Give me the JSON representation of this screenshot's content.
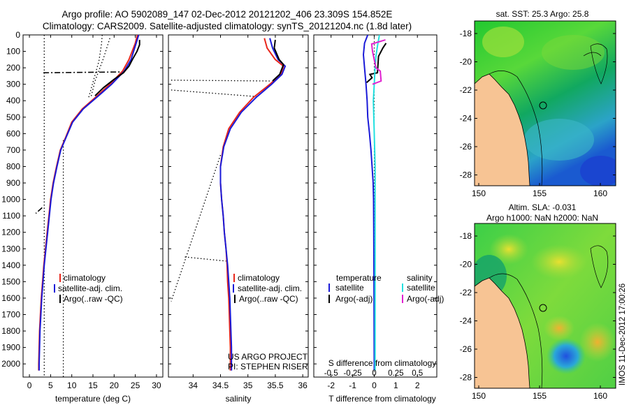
{
  "header": {
    "line1": "Argo profile: AO 5902089_147 02-Dec-2012 20121202_406 23.309S 154.852E",
    "line2": "Climatology: CARS2009. Satellite-adjusted climatology: synTS_20121204.nc (1.8d later)"
  },
  "colors": {
    "climatology": "#e8261b",
    "satellite": "#1a1ad8",
    "argo": "#000000",
    "sal_satellite": "#22e0e0",
    "sal_argo": "#e020d0",
    "land": "#f7c494"
  },
  "depth_axis": {
    "ticks": [
      0,
      100,
      200,
      300,
      400,
      500,
      600,
      700,
      800,
      900,
      1000,
      1100,
      1200,
      1300,
      1400,
      1500,
      1600,
      1700,
      1800,
      1900,
      2000
    ],
    "ylim": [
      0,
      2080
    ]
  },
  "chart_data": [
    {
      "type": "line",
      "id": "temperature",
      "xlabel": "temperature (deg C)",
      "xlim": [
        -1.5,
        31.5
      ],
      "xticks": [
        0,
        5,
        10,
        15,
        20,
        25,
        30
      ],
      "legend": [
        "climatology",
        "satellite-adj. clim.",
        "Argo(..raw -QC)"
      ],
      "series": [
        {
          "name": "climatology",
          "points": [
            [
              25.5,
              0
            ],
            [
              25,
              50
            ],
            [
              23.5,
              150
            ],
            [
              22,
              220
            ],
            [
              19,
              300
            ],
            [
              16,
              370
            ],
            [
              12.5,
              450
            ],
            [
              10,
              530
            ],
            [
              8.6,
              620
            ],
            [
              7.3,
              700
            ],
            [
              6.4,
              800
            ],
            [
              5.6,
              900
            ],
            [
              5,
              1000
            ],
            [
              4.6,
              1100
            ],
            [
              4.2,
              1200
            ],
            [
              3.8,
              1300
            ],
            [
              3.4,
              1400
            ],
            [
              3.1,
              1500
            ],
            [
              2.8,
              1600
            ],
            [
              2.6,
              1700
            ],
            [
              2.4,
              1800
            ],
            [
              2.3,
              1900
            ],
            [
              2.2,
              2000
            ],
            [
              2.2,
              2040
            ]
          ]
        },
        {
          "name": "satellite",
          "points": [
            [
              25.8,
              0
            ],
            [
              25.2,
              50
            ],
            [
              24,
              150
            ],
            [
              22.4,
              220
            ],
            [
              19.4,
              300
            ],
            [
              16.3,
              370
            ],
            [
              12.7,
              450
            ],
            [
              10.2,
              530
            ],
            [
              8.7,
              620
            ],
            [
              7.4,
              700
            ],
            [
              6.5,
              800
            ],
            [
              5.7,
              900
            ],
            [
              5.1,
              1000
            ],
            [
              4.7,
              1100
            ],
            [
              4.3,
              1200
            ],
            [
              3.9,
              1300
            ],
            [
              3.5,
              1400
            ],
            [
              3.2,
              1500
            ],
            [
              2.9,
              1600
            ],
            [
              2.7,
              1700
            ],
            [
              2.5,
              1800
            ],
            [
              2.4,
              1900
            ],
            [
              2.3,
              2000
            ],
            [
              2.3,
              2040
            ]
          ]
        },
        {
          "name": "argo",
          "points": [
            [
              26,
              30
            ],
            [
              26,
              60
            ],
            [
              25.4,
              100
            ],
            [
              24.3,
              150
            ],
            [
              23.5,
              190
            ],
            [
              22.2,
              230
            ],
            [
              20,
              270
            ],
            [
              17.5,
              320
            ],
            [
              15.5,
              370
            ]
          ]
        }
      ],
      "qc_outliers": [
        [
          [
            3.3,
            230
          ],
          [
            22.5,
            225
          ]
        ],
        [
          [
            3,
            1050
          ],
          [
            1.5,
            1085
          ]
        ]
      ],
      "envelope": [
        {
          "points": [
            [
              3.5,
              0
            ],
            [
              3.5,
              2080
            ]
          ]
        },
        {
          "points": [
            [
              8,
              640
            ],
            [
              8,
              2080
            ]
          ]
        },
        {
          "points": [
            [
              17.2,
              0
            ],
            [
              17,
              60
            ],
            [
              16.4,
              160
            ],
            [
              15.2,
              270
            ],
            [
              14,
              380
            ]
          ]
        },
        {
          "points": [
            [
              19,
              20
            ],
            [
              17.5,
              140
            ],
            [
              15.5,
              280
            ],
            [
              14.5,
              380
            ]
          ]
        }
      ],
      "annotations": []
    },
    {
      "type": "line",
      "id": "salinity",
      "xlabel": "salinity",
      "xlim": [
        33.55,
        36.1
      ],
      "xticks": [
        34,
        34.5,
        35,
        35.5,
        36
      ],
      "xticklabels": [
        "34",
        "34.5",
        "35",
        "35.5",
        "36"
      ],
      "legend": [
        "climatology",
        "satellite-adj. clim.",
        "Argo(..raw -QC)"
      ],
      "series": [
        {
          "name": "climatology",
          "points": [
            [
              35.3,
              20
            ],
            [
              35.35,
              80
            ],
            [
              35.5,
              150
            ],
            [
              35.65,
              190
            ],
            [
              35.6,
              240
            ],
            [
              35.4,
              300
            ],
            [
              35.1,
              380
            ],
            [
              34.85,
              470
            ],
            [
              34.65,
              570
            ],
            [
              34.55,
              680
            ],
            [
              34.5,
              800
            ],
            [
              34.5,
              900
            ],
            [
              34.52,
              1000
            ],
            [
              34.55,
              1100
            ],
            [
              34.57,
              1200
            ],
            [
              34.6,
              1300
            ],
            [
              34.62,
              1400
            ],
            [
              34.63,
              1500
            ],
            [
              34.65,
              1600
            ],
            [
              34.66,
              1700
            ],
            [
              34.67,
              1800
            ],
            [
              34.68,
              1900
            ],
            [
              34.68,
              2000
            ],
            [
              34.68,
              2040
            ]
          ]
        },
        {
          "name": "satellite",
          "points": [
            [
              35.4,
              20
            ],
            [
              35.45,
              80
            ],
            [
              35.55,
              150
            ],
            [
              35.68,
              190
            ],
            [
              35.62,
              240
            ],
            [
              35.43,
              300
            ],
            [
              35.15,
              380
            ],
            [
              34.88,
              470
            ],
            [
              34.68,
              570
            ],
            [
              34.56,
              680
            ],
            [
              34.5,
              800
            ],
            [
              34.5,
              900
            ],
            [
              34.52,
              1000
            ],
            [
              34.55,
              1100
            ],
            [
              34.57,
              1200
            ],
            [
              34.6,
              1300
            ],
            [
              34.63,
              1400
            ],
            [
              34.65,
              1500
            ],
            [
              34.67,
              1600
            ],
            [
              34.68,
              1700
            ],
            [
              34.69,
              1800
            ],
            [
              34.7,
              1900
            ],
            [
              34.7,
              2000
            ],
            [
              34.7,
              2040
            ]
          ]
        },
        {
          "name": "argo",
          "points": [
            [
              35.5,
              30
            ],
            [
              35.48,
              80
            ],
            [
              35.57,
              150
            ],
            [
              35.65,
              180
            ],
            [
              35.58,
              240
            ],
            [
              35.45,
              280
            ]
          ]
        }
      ],
      "envelope": [
        {
          "points": [
            [
              33.6,
              275
            ],
            [
              35.42,
              280
            ]
          ]
        },
        {
          "points": [
            [
              33.6,
              335
            ],
            [
              35.15,
              375
            ]
          ]
        },
        {
          "points": [
            [
              34.5,
              730
            ],
            [
              33.6,
              1620
            ]
          ]
        },
        {
          "points": [
            [
              33.85,
              1350
            ],
            [
              34.6,
              1375
            ]
          ]
        }
      ],
      "annotations": [
        "US ARGO PROJECT",
        "PI: STEPHEN RISER"
      ]
    },
    {
      "type": "line",
      "id": "difference",
      "xlabel_bottom": "T difference from climatology",
      "xlabel_top": "S difference from climatology",
      "xlim": [
        -2.8,
        2.9
      ],
      "xticks": [
        -2,
        -1,
        0,
        1,
        2
      ],
      "xticklabels": [
        "-2",
        "-1",
        "0",
        "1",
        "2"
      ],
      "top_ticks": [
        -0.5,
        -0.25,
        0,
        0.25,
        0.5
      ],
      "top_ticklabels": [
        "-0.5",
        "-0.25",
        "0",
        "0.25",
        "0.5"
      ],
      "legend_headers": [
        "temperature",
        "salinity"
      ],
      "legend_left": [
        "satellite",
        "Argo(-adj)"
      ],
      "legend_right": [
        "satellite",
        "Argo(-adj)"
      ],
      "series": [
        {
          "name": "T satellite",
          "axis": "T",
          "points": [
            [
              -0.3,
              0
            ],
            [
              -0.45,
              50
            ],
            [
              -0.5,
              120
            ],
            [
              -0.45,
              200
            ],
            [
              -0.38,
              300
            ],
            [
              -0.33,
              400
            ],
            [
              -0.3,
              500
            ],
            [
              -0.22,
              600
            ],
            [
              -0.15,
              700
            ],
            [
              -0.1,
              800
            ],
            [
              -0.05,
              900
            ],
            [
              -0.03,
              1000
            ],
            [
              -0.02,
              1200
            ],
            [
              -0.01,
              1500
            ],
            [
              0,
              2040
            ]
          ]
        },
        {
          "name": "T argo",
          "axis": "T",
          "points": [
            [
              0.55,
              50
            ],
            [
              0.4,
              80
            ],
            [
              0.2,
              130
            ],
            [
              0.15,
              230
            ],
            [
              -0.2,
              240
            ],
            [
              -0.1,
              260
            ],
            [
              -0.35,
              290
            ]
          ]
        },
        {
          "name": "S satellite",
          "axis": "S",
          "points": [
            [
              0.06,
              0
            ],
            [
              0.04,
              60
            ],
            [
              0.02,
              130
            ],
            [
              0.01,
              200
            ],
            [
              0,
              300
            ],
            [
              -0.01,
              400
            ],
            [
              0,
              600
            ],
            [
              0.01,
              800
            ],
            [
              0.01,
              1100
            ],
            [
              0.01,
              1500
            ],
            [
              0.01,
              2040
            ]
          ]
        },
        {
          "name": "S argo",
          "axis": "S",
          "points": [
            [
              0.13,
              30
            ],
            [
              -0.03,
              55
            ],
            [
              -0.02,
              100
            ],
            [
              0.02,
              200
            ],
            [
              0.07,
              220
            ],
            [
              0.08,
              280
            ],
            [
              -0.02,
              300
            ]
          ]
        }
      ]
    }
  ],
  "maps": {
    "top": {
      "title": "sat. SST: 25.3 Argo: 25.8",
      "yticklabels": [
        "-18",
        "-20",
        "-22",
        "-24",
        "-26",
        "-28"
      ],
      "xticklabels": [
        "150",
        "155",
        "160"
      ]
    },
    "bottom": {
      "title1": "Altim. SLA: -0.031",
      "title2": "Argo h1000: NaN h2000: NaN",
      "yticklabels": [
        "-18",
        "-20",
        "-22",
        "-24",
        "-26",
        "-28"
      ],
      "xticklabels": [
        "150",
        "155",
        "160"
      ]
    }
  },
  "footer": {
    "stamp": "IMOS 11-Dec-2012 17:00:26"
  }
}
